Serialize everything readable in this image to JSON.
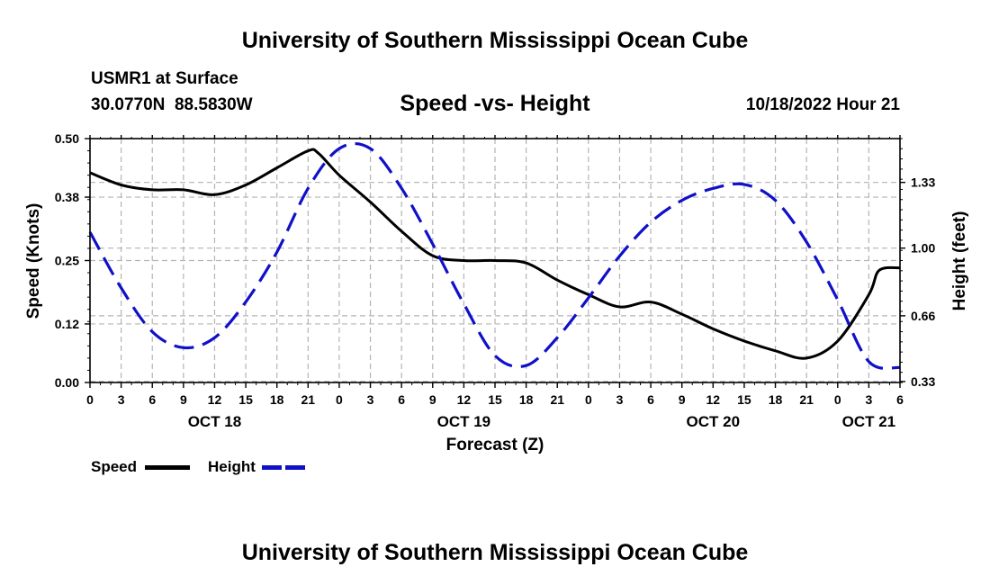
{
  "header": {
    "title_top": "University of Southern Mississippi Ocean Cube",
    "station": "USMR1 at Surface",
    "coords": "30.0770N  88.5830W",
    "chart_title": "Speed -vs- Height",
    "date": "10/18/2022 Hour 21",
    "title_bottom": "University of Southern Mississippi Ocean Cube"
  },
  "colors": {
    "speed": "#000000",
    "height": "#1010c8",
    "grid": "#b4b4b4"
  },
  "legend": {
    "speed_label": "Speed",
    "height_label": "Height"
  },
  "chart_data": {
    "type": "line",
    "title": "Speed -vs- Height",
    "xlabel": "Forecast (Z)",
    "ylabel": "Speed (Knots)",
    "y2label": "Height (feet)",
    "xlim": [
      0,
      78
    ],
    "ylim": [
      0,
      0.5
    ],
    "y2lim": [
      0.325,
      1.55
    ],
    "x_tick_hours": [
      0,
      3,
      6,
      9,
      12,
      15,
      18,
      21,
      24,
      27,
      30,
      33,
      36,
      39,
      42,
      45,
      48,
      51,
      54,
      57,
      60,
      63,
      66,
      69,
      72,
      75,
      78
    ],
    "x_tick_labels": [
      "0",
      "3",
      "6",
      "9",
      "12",
      "15",
      "18",
      "21",
      "0",
      "3",
      "6",
      "9",
      "12",
      "15",
      "18",
      "21",
      "0",
      "3",
      "6",
      "9",
      "12",
      "15",
      "18",
      "21",
      "0",
      "3",
      "6"
    ],
    "day_labels": [
      {
        "hour": 12,
        "label": "OCT 18"
      },
      {
        "hour": 36,
        "label": "OCT 19"
      },
      {
        "hour": 60,
        "label": "OCT 20"
      },
      {
        "hour": 75,
        "label": "OCT 21"
      }
    ],
    "y_ticks": [
      0.0,
      0.12,
      0.25,
      0.38,
      0.5
    ],
    "y_tick_labels": [
      "0.00",
      "0.12",
      "0.25",
      "0.38",
      "0.50"
    ],
    "y2_ticks": [
      0.33,
      0.66,
      1.0,
      1.33
    ],
    "y2_tick_labels": [
      "0.33",
      "0.66",
      "1.00",
      "1.33"
    ],
    "series": [
      {
        "name": "Speed",
        "axis": "left",
        "style": "solid",
        "x": [
          0,
          3,
          6,
          9,
          12,
          15,
          18,
          21,
          22,
          24,
          27,
          30,
          33,
          36,
          39,
          42,
          45,
          48,
          51,
          54,
          57,
          60,
          63,
          66,
          69,
          72,
          75,
          76,
          78
        ],
        "values": [
          0.43,
          0.405,
          0.395,
          0.395,
          0.385,
          0.405,
          0.44,
          0.475,
          0.47,
          0.425,
          0.37,
          0.31,
          0.26,
          0.25,
          0.25,
          0.245,
          0.21,
          0.18,
          0.155,
          0.165,
          0.14,
          0.11,
          0.085,
          0.065,
          0.05,
          0.085,
          0.18,
          0.23,
          0.235
        ]
      },
      {
        "name": "Height",
        "axis": "right",
        "style": "dashed",
        "x": [
          0,
          3,
          6,
          9,
          12,
          15,
          18,
          21,
          24,
          27,
          30,
          33,
          36,
          39,
          42,
          45,
          48,
          51,
          54,
          57,
          60,
          63,
          66,
          69,
          72,
          75,
          78
        ],
        "values": [
          1.08,
          0.8,
          0.58,
          0.5,
          0.55,
          0.73,
          0.98,
          1.3,
          1.5,
          1.5,
          1.3,
          1.02,
          0.72,
          0.46,
          0.41,
          0.55,
          0.75,
          0.96,
          1.13,
          1.24,
          1.3,
          1.32,
          1.24,
          1.03,
          0.74,
          0.43,
          0.4
        ]
      }
    ]
  }
}
